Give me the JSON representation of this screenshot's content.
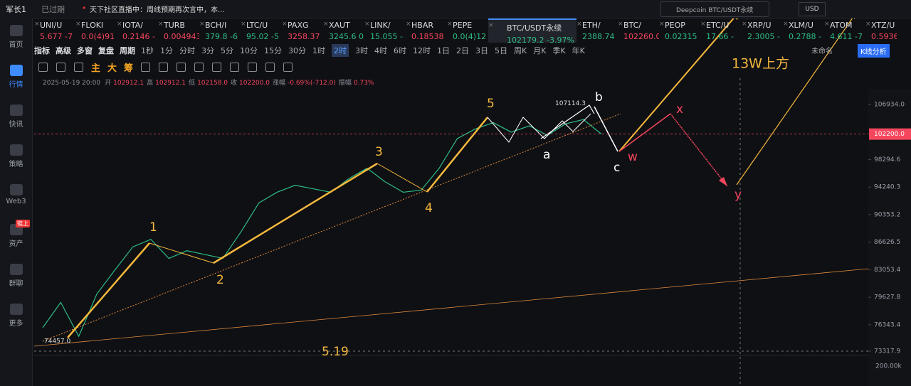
{
  "header": {
    "user": "军长1",
    "status": "已过期",
    "notice": "天下社区直播中：周线预期再次言中，本...",
    "search": "Deepcoin BTC/USDT永续",
    "currency": "USD"
  },
  "sidebar": {
    "items": [
      "首页",
      "行情",
      "快讯",
      "策略",
      "Web3",
      "资产",
      "群聊",
      "更多"
    ],
    "badge": "链上",
    "active": 1
  },
  "tickers": [
    {
      "name": "UNI/U",
      "price": "5.677",
      "change": "-7",
      "trend": "down"
    },
    {
      "name": "FLOKI",
      "price": "0.0(4)91",
      "trend": "down"
    },
    {
      "name": "IOTA/",
      "price": "0.2146",
      "change": "-",
      "trend": "down"
    },
    {
      "name": "TURB",
      "price": "0.004943",
      "trend": "down"
    },
    {
      "name": "BCH/I",
      "price": "379.8",
      "change": "-6",
      "trend": "up"
    },
    {
      "name": "LTC/U",
      "price": "95.02",
      "change": "-5",
      "trend": "up"
    },
    {
      "name": "PAXG",
      "price": "3258.37",
      "trend": "down"
    },
    {
      "name": "XAUT",
      "price": "3245.6",
      "change": "0",
      "trend": "up"
    },
    {
      "name": "LINK/",
      "price": "15.055",
      "change": "-",
      "trend": "up"
    },
    {
      "name": "HBAR",
      "price": "0.18538",
      "trend": "down"
    },
    {
      "name": "PEPE",
      "price": "0.0(4)12",
      "trend": "up"
    },
    {
      "name": "BTC/USDT永续",
      "price": "102179.2",
      "change": "-3.97%",
      "trend": "up",
      "active": true
    },
    {
      "name": "ETH/",
      "price": "2388.74",
      "trend": "up"
    },
    {
      "name": "BTC/",
      "price": "102260.0",
      "trend": "down"
    },
    {
      "name": "PEOP",
      "price": "0.02315",
      "trend": "up"
    },
    {
      "name": "ETC/U",
      "price": "17.66",
      "change": "-",
      "trend": "up"
    },
    {
      "name": "XRP/U",
      "price": "2.3005",
      "change": "-",
      "trend": "up"
    },
    {
      "name": "XLM/U",
      "price": "0.2788",
      "change": "-",
      "trend": "up"
    },
    {
      "name": "ATOM",
      "price": "4.611",
      "change": "-7",
      "trend": "up"
    },
    {
      "name": "XTZ/U",
      "price": "0.5936",
      "change": "-",
      "trend": "down"
    }
  ],
  "toolbar": {
    "tools": [
      "指标",
      "高级",
      "多窗",
      "复盘",
      "周期"
    ],
    "intervals": [
      "1秒",
      "1分",
      "分时",
      "3分",
      "5分",
      "10分",
      "15分",
      "30分",
      "1时",
      "2时",
      "3时",
      "4时",
      "6时",
      "12时",
      "1日",
      "2日",
      "3日",
      "5日",
      "周K",
      "月K",
      "季K",
      "年K"
    ],
    "active_interval": 9,
    "layout": "未命名",
    "analysis": "K线分析"
  },
  "drawbar": {
    "chars": [
      "主",
      "大",
      "筹"
    ]
  },
  "info": {
    "time": "2025-05-19 20:00",
    "fields": [
      {
        "label": "开",
        "value": "102912.1"
      },
      {
        "label": "高",
        "value": "102912.1"
      },
      {
        "label": "低",
        "value": "102158.0"
      },
      {
        "label": "收",
        "value": "102200.0"
      },
      {
        "label": "涨幅",
        "value": "-0.69%(-712.0)"
      },
      {
        "label": "振幅",
        "value": "0.73%"
      }
    ]
  },
  "chart_data": {
    "type": "line",
    "log_scale": true,
    "color": "#2ebd85",
    "values": [
      76000,
      79000,
      75000,
      80000,
      83000,
      86000,
      87000,
      84500,
      85500,
      85000,
      84500,
      88000,
      92000,
      93500,
      94500,
      94000,
      93500,
      95500,
      97000,
      95000,
      93500,
      93800,
      97000,
      101500,
      103000,
      104000,
      102500,
      103500,
      102000,
      103800,
      104500,
      102200
    ],
    "yticks": [
      {
        "value": 106934,
        "label": "106934.0"
      },
      98294.6,
      94240.3,
      90353.2,
      86626.5,
      83053.4,
      79627.8,
      76343.4,
      73317.9
    ],
    "current_price": {
      "value": 102200,
      "label": "102200.0"
    },
    "high": 107114.3,
    "low": {
      "value": 74457,
      "label": "74457.0"
    },
    "volume_label": "200.00k"
  },
  "annotations": [
    "1",
    "2",
    "3",
    "4",
    "5",
    "a",
    "b",
    "c",
    "w",
    "x",
    "y",
    "13W上方",
    "5.19"
  ]
}
